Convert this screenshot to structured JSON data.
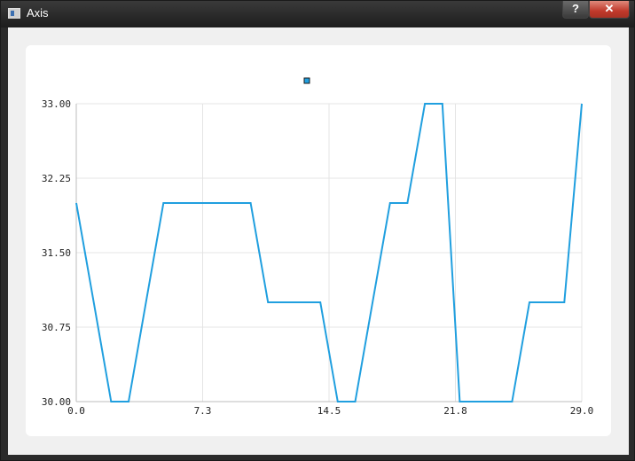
{
  "window": {
    "title": "Axis",
    "help_label": "?",
    "close_label": "✕"
  },
  "icons": {
    "app": "window-app-icon",
    "help": "help-icon",
    "close": "close-icon"
  },
  "colors": {
    "series": "#209fdf",
    "grid": "#e4e4e4",
    "legend_marker": "#209fdf"
  },
  "chart_data": {
    "type": "line",
    "title": "",
    "xlabel": "",
    "ylabel": "",
    "xlim": [
      0,
      29
    ],
    "ylim": [
      30,
      33
    ],
    "x_ticks": [
      "0.0",
      "7.3",
      "14.5",
      "21.8",
      "29.0"
    ],
    "y_ticks": [
      "30.00",
      "30.75",
      "31.50",
      "32.25",
      "33.00"
    ],
    "grid": true,
    "legend": "top-center",
    "series": [
      {
        "color": "#209fdf",
        "points": [
          [
            0,
            32
          ],
          [
            1,
            31
          ],
          [
            2,
            30
          ],
          [
            3,
            30
          ],
          [
            4,
            31
          ],
          [
            5,
            32
          ],
          [
            6,
            32
          ],
          [
            7,
            32
          ],
          [
            8,
            32
          ],
          [
            9,
            32
          ],
          [
            10,
            32
          ],
          [
            11,
            31
          ],
          [
            12,
            31
          ],
          [
            13,
            31
          ],
          [
            14,
            31
          ],
          [
            15,
            30
          ],
          [
            16,
            30
          ],
          [
            17,
            31
          ],
          [
            18,
            32
          ],
          [
            19,
            32
          ],
          [
            20,
            33
          ],
          [
            21,
            33
          ],
          [
            22,
            30
          ],
          [
            23,
            30
          ],
          [
            24,
            30
          ],
          [
            25,
            30
          ],
          [
            26,
            31
          ],
          [
            27,
            31
          ],
          [
            28,
            31
          ],
          [
            29,
            33
          ]
        ]
      }
    ]
  }
}
